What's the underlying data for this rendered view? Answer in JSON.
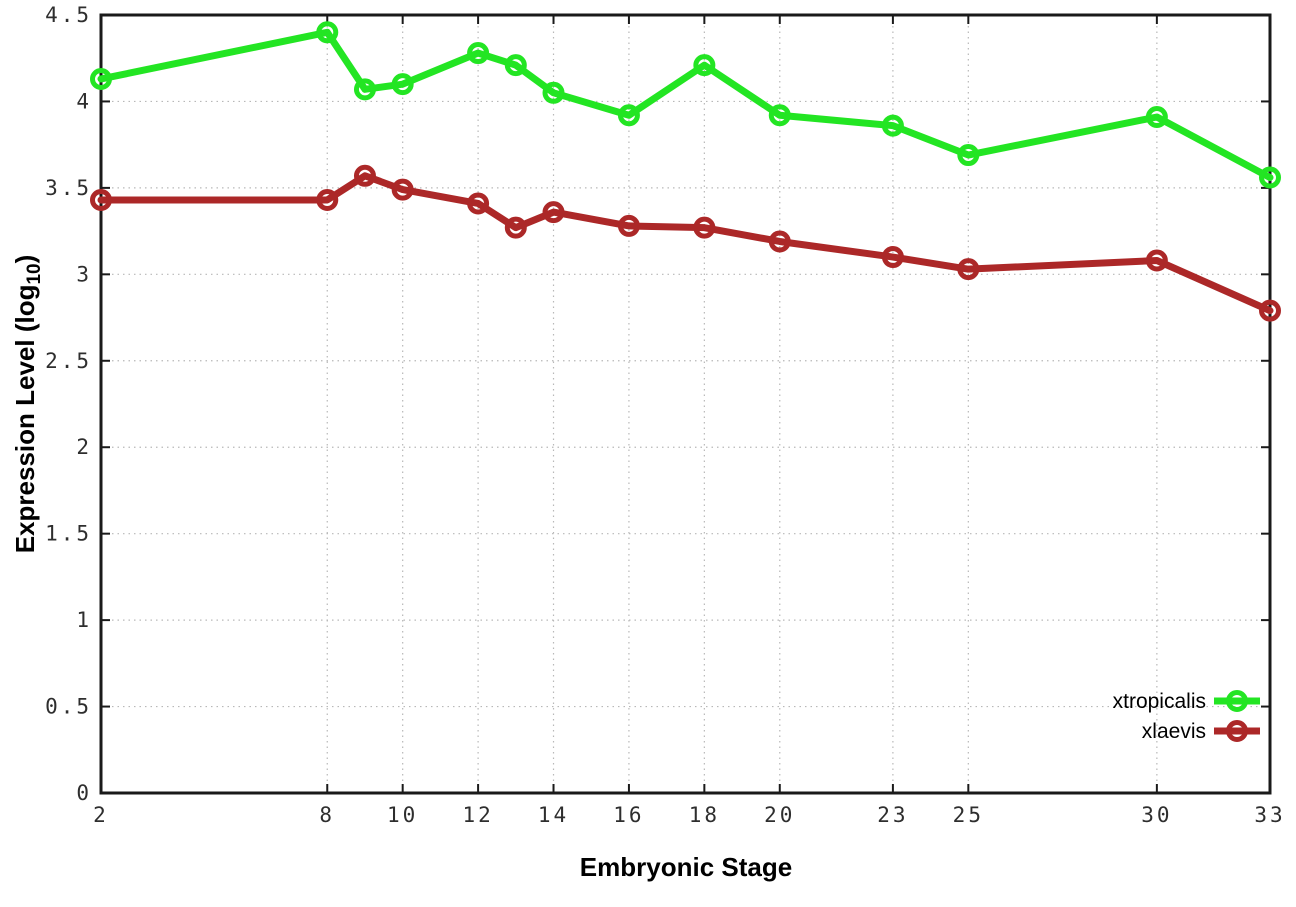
{
  "chart_data": {
    "type": "line",
    "title": "",
    "xlabel": "Embryonic Stage",
    "ylabel": "Expression Level (log10)",
    "ylabel_parts": {
      "main": "Expression Level (log",
      "sub": "10",
      "end": ")"
    },
    "xlim": [
      2,
      33
    ],
    "ylim": [
      0,
      4.5
    ],
    "grid": true,
    "legend_position": "bottom-right",
    "x": [
      2,
      8,
      9,
      10,
      12,
      13,
      14,
      16,
      18,
      20,
      23,
      25,
      30,
      33
    ],
    "series": [
      {
        "name": "xtropicalis",
        "color": "#23e523",
        "values": [
          4.13,
          4.4,
          4.07,
          4.1,
          4.28,
          4.21,
          4.05,
          3.92,
          4.21,
          3.92,
          3.86,
          3.69,
          3.91,
          3.56
        ]
      },
      {
        "name": "xlaevis",
        "color": "#ac2828",
        "values": [
          3.43,
          3.43,
          3.57,
          3.49,
          3.41,
          3.27,
          3.36,
          3.28,
          3.27,
          3.19,
          3.1,
          3.03,
          3.08,
          2.79
        ]
      }
    ],
    "xticks": [
      2,
      8,
      10,
      12,
      14,
      16,
      18,
      20,
      23,
      25,
      30,
      33
    ],
    "xtick_labels": [
      "2",
      "8",
      "10",
      "12",
      "14",
      "16",
      "18",
      "20",
      "23",
      "25",
      "30",
      "33"
    ],
    "yticks": [
      0,
      0.5,
      1,
      1.5,
      2,
      2.5,
      3,
      3.5,
      4,
      4.5
    ],
    "ytick_labels": [
      "0",
      "0.5",
      "1",
      "1.5",
      "2",
      "2.5",
      "3",
      "3.5",
      "4",
      "4.5"
    ]
  },
  "styles": {
    "frame_color": "#1a1a1a",
    "grid_color": "#b8b8b8",
    "tick_label_color": "#2e2e2e",
    "title_color": "#000000",
    "background": "#ffffff"
  }
}
